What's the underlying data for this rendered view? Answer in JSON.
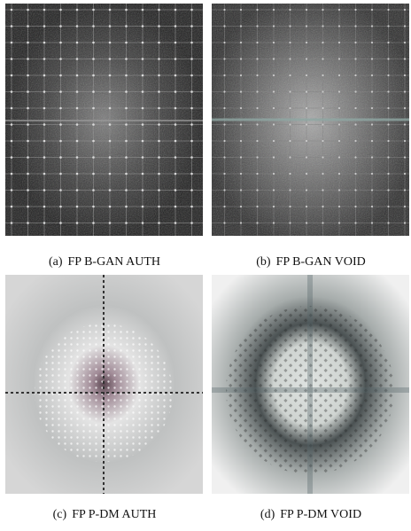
{
  "subfigures": [
    {
      "label": "(a)",
      "caption": "FP B-GAN AUTH"
    },
    {
      "label": "(b)",
      "caption": "FP B-GAN VOID"
    },
    {
      "label": "(c)",
      "caption": "FP P-DM AUTH"
    },
    {
      "label": "(d)",
      "caption": "FP P-DM VOID"
    }
  ]
}
